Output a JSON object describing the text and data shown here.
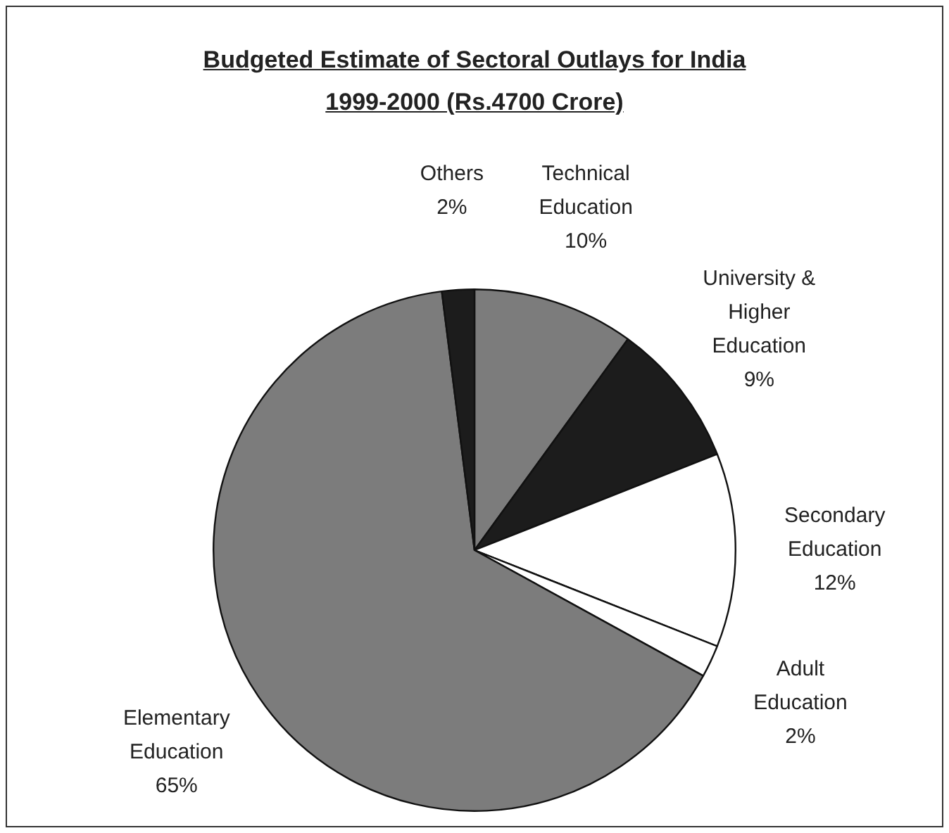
{
  "chart_data": {
    "type": "pie",
    "title": "Budgeted Estimate of Sectoral Outlays for India",
    "subtitle": "1999-2000 (Rs.4700 Crore)",
    "categories": [
      "Technical Education",
      "University & Higher Education",
      "Secondary Education",
      "Adult Education",
      "Elementary Education",
      "Others"
    ],
    "values": [
      10,
      9,
      12,
      2,
      65,
      2
    ],
    "value_labels": [
      "10%",
      "9%",
      "12%",
      "2%",
      "65%",
      "2%"
    ],
    "colors": [
      "#7c7c7c",
      "#1c1c1c",
      "#ffffff",
      "#ffffff",
      "#7c7c7c",
      "#1c1c1c"
    ],
    "legend": false
  }
}
